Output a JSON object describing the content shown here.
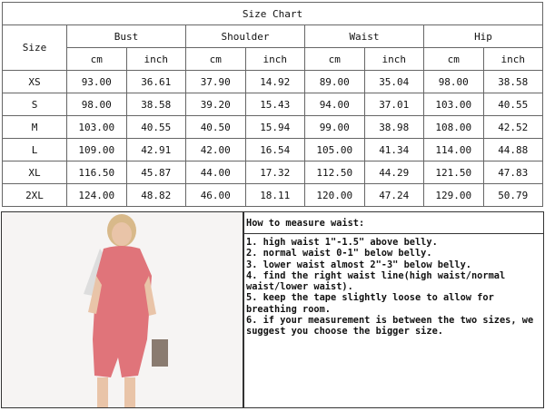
{
  "size_chart": {
    "title": "Size Chart",
    "size_label": "Size",
    "groups": [
      "Bust",
      "Shoulder",
      "Waist",
      "Hip"
    ],
    "units": [
      "cm",
      "inch"
    ],
    "rows": [
      {
        "size": "XS",
        "values": [
          "93.00",
          "36.61",
          "37.90",
          "14.92",
          "89.00",
          "35.04",
          "98.00",
          "38.58"
        ]
      },
      {
        "size": "S",
        "values": [
          "98.00",
          "38.58",
          "39.20",
          "15.43",
          "94.00",
          "37.01",
          "103.00",
          "40.55"
        ]
      },
      {
        "size": "M",
        "values": [
          "103.00",
          "40.55",
          "40.50",
          "15.94",
          "99.00",
          "38.98",
          "108.00",
          "42.52"
        ]
      },
      {
        "size": "L",
        "values": [
          "109.00",
          "42.91",
          "42.00",
          "16.54",
          "105.00",
          "41.34",
          "114.00",
          "44.88"
        ]
      },
      {
        "size": "XL",
        "values": [
          "116.50",
          "45.87",
          "44.00",
          "17.32",
          "112.50",
          "44.29",
          "121.50",
          "47.83"
        ]
      },
      {
        "size": "2XL",
        "values": [
          "124.00",
          "48.82",
          "46.00",
          "18.11",
          "120.00",
          "47.24",
          "129.00",
          "50.79"
        ]
      }
    ]
  },
  "measure": {
    "title": "How to measure waist:",
    "steps": [
      "1. high waist 1\"-1.5\" above belly.",
      "2. normal waist 0-1\" below belly.",
      "3. lower waist almost 2\"-3\" below belly.",
      "4. find the right waist line(high waist/normal waist/lower waist).",
      "5. keep the tape slightly loose to allow for breathing room.",
      "6. if your measurement is between the two sizes, we suggest you choose the bigger size."
    ]
  },
  "colors": {
    "romper": "#e0747a"
  }
}
